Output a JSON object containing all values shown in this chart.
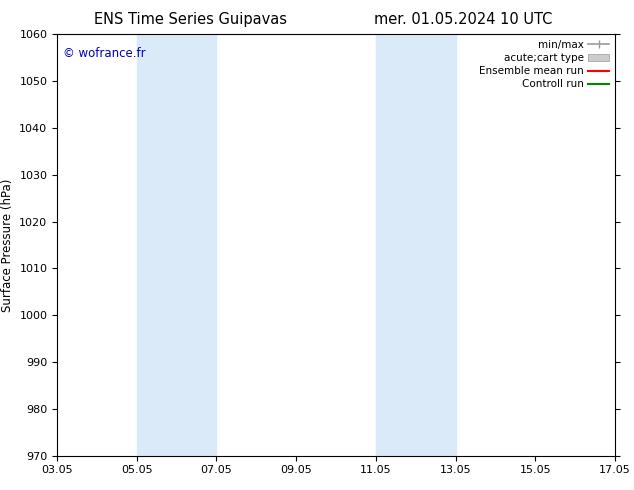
{
  "title_left": "ENS Time Series Guipavas",
  "title_right": "mer. 01.05.2024 10 UTC",
  "ylabel": "Surface Pressure (hPa)",
  "ylim": [
    970,
    1060
  ],
  "yticks": [
    970,
    980,
    990,
    1000,
    1010,
    1020,
    1030,
    1040,
    1050,
    1060
  ],
  "xlim": [
    0,
    14
  ],
  "xtick_labels": [
    "03.05",
    "05.05",
    "07.05",
    "09.05",
    "11.05",
    "13.05",
    "15.05",
    "17.05"
  ],
  "xtick_positions": [
    0,
    2,
    4,
    6,
    8,
    10,
    12,
    14
  ],
  "shade_bands": [
    {
      "xmin": 2.0,
      "xmax": 4.0
    },
    {
      "xmin": 8.0,
      "xmax": 10.0
    }
  ],
  "shade_color": "#daeaf8",
  "watermark": "© wofrance.fr",
  "watermark_color": "#0000bb",
  "legend_entries": [
    {
      "label": "min/max",
      "color": "#999999",
      "lw": 1.2,
      "type": "minmax"
    },
    {
      "label": "acute;cart type",
      "color": "#cccccc",
      "lw": 5,
      "type": "bar"
    },
    {
      "label": "Ensemble mean run",
      "color": "#ff0000",
      "lw": 1.5,
      "type": "line"
    },
    {
      "label": "Controll run",
      "color": "#008800",
      "lw": 1.5,
      "type": "line"
    }
  ],
  "bg_color": "#ffffff",
  "title_fontsize": 10.5,
  "tick_fontsize": 8,
  "ylabel_fontsize": 8.5,
  "legend_fontsize": 7.5
}
